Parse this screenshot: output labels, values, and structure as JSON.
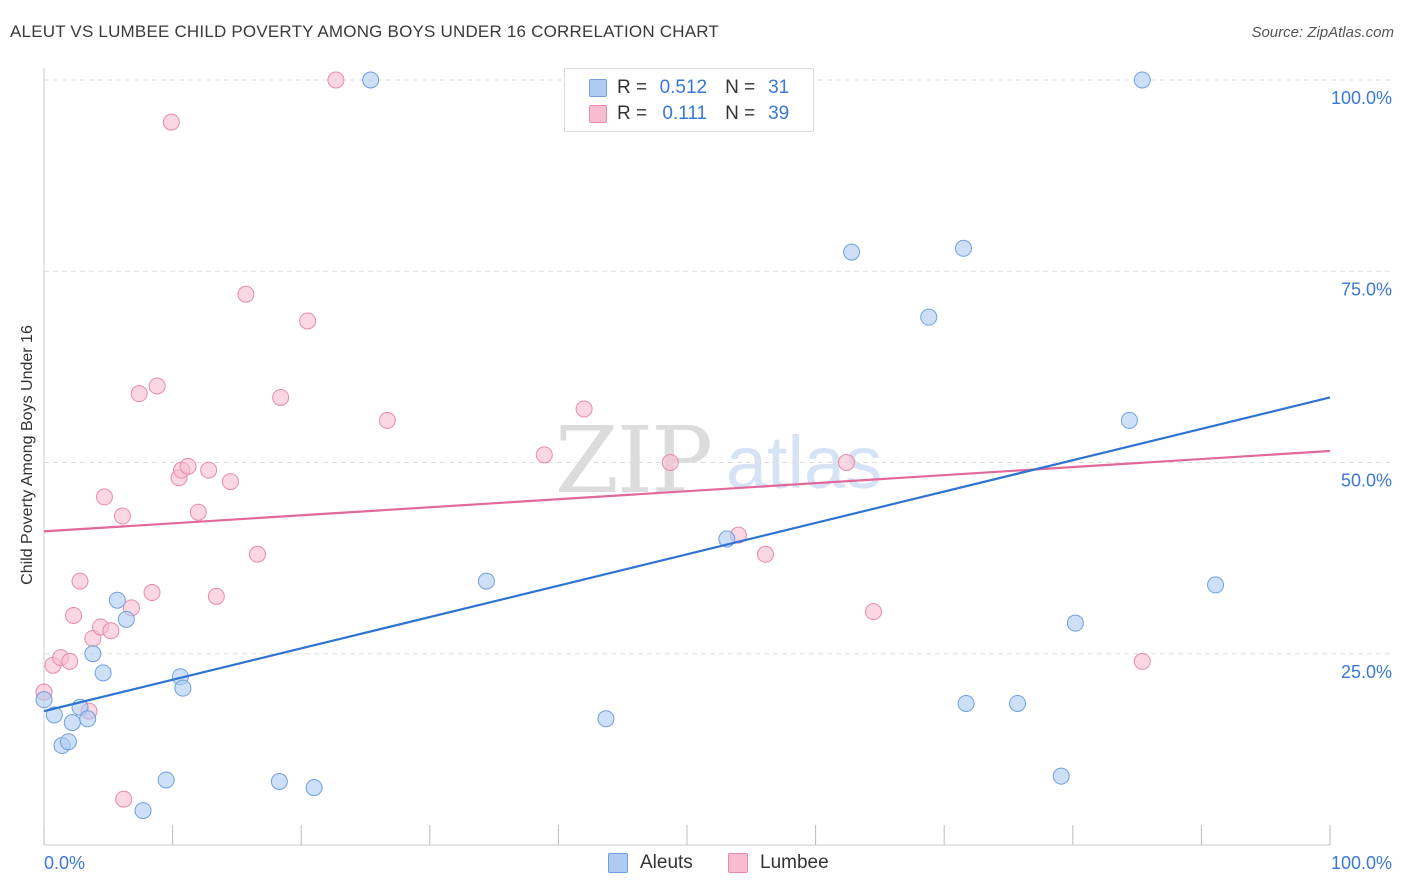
{
  "title": "ALEUT VS LUMBEE CHILD POVERTY AMONG BOYS UNDER 16 CORRELATION CHART",
  "source": "Source: ZipAtlas.com",
  "watermark": {
    "zip": "ZIP",
    "atlas": "atlas"
  },
  "legend": {
    "aleut": {
      "r_label": "R =",
      "r_value": "0.512",
      "n_label": "N =",
      "n_value": "31"
    },
    "lumbee": {
      "r_label": "R =",
      "r_value": "0.111",
      "n_label": "N =",
      "n_value": "39"
    }
  },
  "colors": {
    "aleut_fill": "#aecbf2",
    "aleut_stroke": "#6f9fe0",
    "aleut_line": "#2f74d0",
    "lumbee_fill": "#f7bcd0",
    "lumbee_stroke": "#e98aab",
    "lumbee_line": "#e0699a",
    "tick_label": "#3b78d8",
    "grid": "#dddddd"
  },
  "chart_data": {
    "type": "scatter",
    "title": "ALEUT VS LUMBEE CHILD POVERTY AMONG BOYS UNDER 16 CORRELATION CHART",
    "xlabel": "",
    "ylabel": "Child Poverty Among Boys Under 16",
    "xlim": [
      0,
      100
    ],
    "ylim": [
      0,
      100
    ],
    "x_tick_labels": [
      "0.0%",
      "100.0%"
    ],
    "y_tick_labels": [
      "25.0%",
      "50.0%",
      "75.0%",
      "100.0%"
    ],
    "y_ticks": [
      25,
      50,
      75,
      100
    ],
    "grid": "horizontal dashed",
    "legend_placement": "bottom",
    "series": [
      {
        "name": "Aleuts",
        "r": 0.512,
        "n": 31,
        "trend": {
          "x": [
            0,
            100
          ],
          "y": [
            17.5,
            58.5
          ]
        },
        "points": [
          [
            0.0,
            19.0
          ],
          [
            0.8,
            17.0
          ],
          [
            1.4,
            13.0
          ],
          [
            1.9,
            13.5
          ],
          [
            2.2,
            16.0
          ],
          [
            2.8,
            18.0
          ],
          [
            3.4,
            16.5
          ],
          [
            3.8,
            25.0
          ],
          [
            4.6,
            22.5
          ],
          [
            5.7,
            32.0
          ],
          [
            6.4,
            29.5
          ],
          [
            7.7,
            4.5
          ],
          [
            9.5,
            8.5
          ],
          [
            10.6,
            22.0
          ],
          [
            10.8,
            20.5
          ],
          [
            18.3,
            8.3
          ],
          [
            21.0,
            7.5
          ],
          [
            25.4,
            100
          ],
          [
            34.4,
            34.5
          ],
          [
            43.7,
            16.5
          ],
          [
            53.1,
            40.0
          ],
          [
            62.8,
            77.5
          ],
          [
            68.8,
            69.0
          ],
          [
            71.5,
            78.0
          ],
          [
            71.7,
            18.5
          ],
          [
            75.7,
            18.5
          ],
          [
            79.1,
            9.0
          ],
          [
            80.2,
            29.0
          ],
          [
            84.4,
            55.5
          ],
          [
            85.4,
            100
          ],
          [
            91.1,
            34.0
          ]
        ]
      },
      {
        "name": "Lumbee",
        "r": 0.111,
        "n": 39,
        "trend": {
          "x": [
            0,
            100
          ],
          "y": [
            41.0,
            51.5
          ]
        },
        "points": [
          [
            0.0,
            20.0
          ],
          [
            0.7,
            23.5
          ],
          [
            1.3,
            24.5
          ],
          [
            2.0,
            24.0
          ],
          [
            2.3,
            30.0
          ],
          [
            2.8,
            34.5
          ],
          [
            3.5,
            17.5
          ],
          [
            3.8,
            27.0
          ],
          [
            4.4,
            28.5
          ],
          [
            4.7,
            45.5
          ],
          [
            5.2,
            28.0
          ],
          [
            6.1,
            43.0
          ],
          [
            6.2,
            6.0
          ],
          [
            6.8,
            31.0
          ],
          [
            7.4,
            59.0
          ],
          [
            8.4,
            33.0
          ],
          [
            8.8,
            60.0
          ],
          [
            9.9,
            94.5
          ],
          [
            10.5,
            48.0
          ],
          [
            10.7,
            49.0
          ],
          [
            11.2,
            49.5
          ],
          [
            12.0,
            43.5
          ],
          [
            12.8,
            49.0
          ],
          [
            13.4,
            32.5
          ],
          [
            14.5,
            47.5
          ],
          [
            15.7,
            72.0
          ],
          [
            16.6,
            38.0
          ],
          [
            18.4,
            58.5
          ],
          [
            20.5,
            68.5
          ],
          [
            22.7,
            100
          ],
          [
            26.7,
            55.5
          ],
          [
            38.9,
            51.0
          ],
          [
            42.0,
            57.0
          ],
          [
            48.7,
            50.0
          ],
          [
            54.0,
            40.5
          ],
          [
            56.1,
            38.0
          ],
          [
            62.4,
            50.0
          ],
          [
            64.5,
            30.5
          ],
          [
            85.4,
            24.0
          ]
        ]
      }
    ]
  }
}
